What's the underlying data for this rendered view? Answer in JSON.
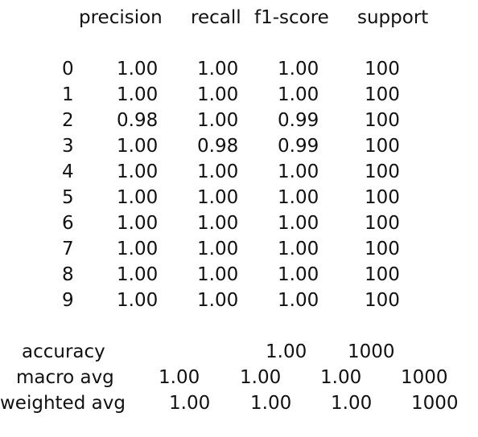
{
  "report": {
    "headers": [
      "precision",
      "recall",
      "f1-score",
      "support"
    ],
    "class_rows": [
      {
        "label": "0",
        "precision": "1.00",
        "recall": "1.00",
        "f1": "1.00",
        "support": "100"
      },
      {
        "label": "1",
        "precision": "1.00",
        "recall": "1.00",
        "f1": "1.00",
        "support": "100"
      },
      {
        "label": "2",
        "precision": "0.98",
        "recall": "1.00",
        "f1": "0.99",
        "support": "100"
      },
      {
        "label": "3",
        "precision": "1.00",
        "recall": "0.98",
        "f1": "0.99",
        "support": "100"
      },
      {
        "label": "4",
        "precision": "1.00",
        "recall": "1.00",
        "f1": "1.00",
        "support": "100"
      },
      {
        "label": "5",
        "precision": "1.00",
        "recall": "1.00",
        "f1": "1.00",
        "support": "100"
      },
      {
        "label": "6",
        "precision": "1.00",
        "recall": "1.00",
        "f1": "1.00",
        "support": "100"
      },
      {
        "label": "7",
        "precision": "1.00",
        "recall": "1.00",
        "f1": "1.00",
        "support": "100"
      },
      {
        "label": "8",
        "precision": "1.00",
        "recall": "1.00",
        "f1": "1.00",
        "support": "100"
      },
      {
        "label": "9",
        "precision": "1.00",
        "recall": "1.00",
        "f1": "1.00",
        "support": "100"
      }
    ],
    "accuracy": {
      "label": "accuracy",
      "f1": "1.00",
      "support": "1000"
    },
    "macro_avg": {
      "label": "macro avg",
      "precision": "1.00",
      "recall": "1.00",
      "f1": "1.00",
      "support": "1000"
    },
    "weighted_avg": {
      "label": "weighted avg",
      "precision": "1.00",
      "recall": "1.00",
      "f1": "1.00",
      "support": "1000"
    }
  }
}
